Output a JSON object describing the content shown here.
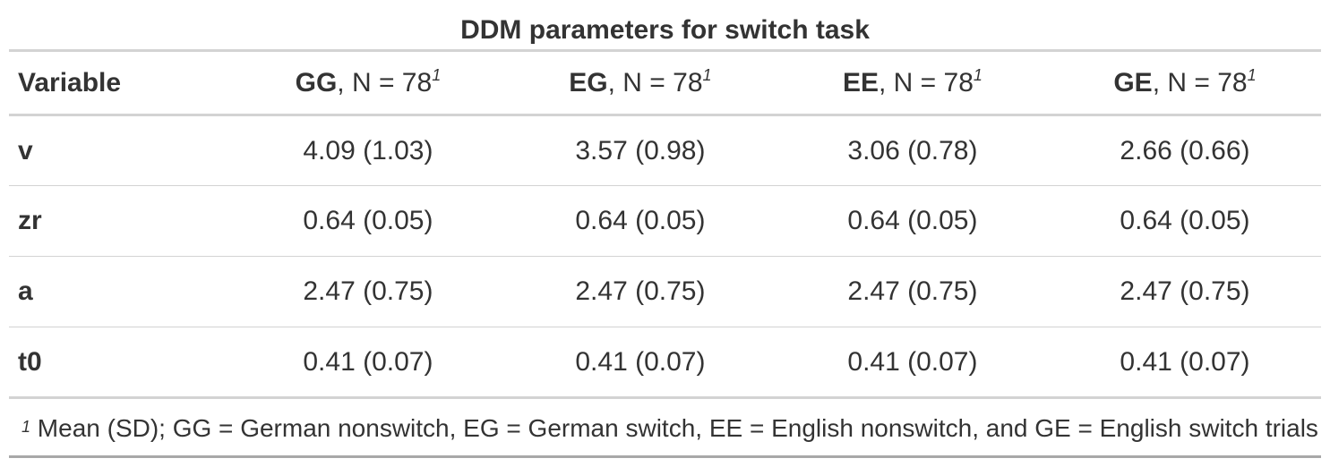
{
  "title": "DDM parameters for switch task",
  "header": {
    "variable": "Variable",
    "columns": [
      {
        "group": "GG",
        "n": ", N = 78",
        "note": "1"
      },
      {
        "group": "EG",
        "n": ", N = 78",
        "note": "1"
      },
      {
        "group": "EE",
        "n": ", N = 78",
        "note": "1"
      },
      {
        "group": "GE",
        "n": ", N = 78",
        "note": "1"
      }
    ]
  },
  "rows": [
    {
      "label": "v",
      "values": [
        "4.09 (1.03)",
        "3.57 (0.98)",
        "3.06 (0.78)",
        "2.66 (0.66)"
      ]
    },
    {
      "label": "zr",
      "values": [
        "0.64 (0.05)",
        "0.64 (0.05)",
        "0.64 (0.05)",
        "0.64 (0.05)"
      ]
    },
    {
      "label": "a",
      "values": [
        "2.47 (0.75)",
        "2.47 (0.75)",
        "2.47 (0.75)",
        "2.47 (0.75)"
      ]
    },
    {
      "label": "t0",
      "values": [
        "0.41 (0.07)",
        "0.41 (0.07)",
        "0.41 (0.07)",
        "0.41 (0.07)"
      ]
    }
  ],
  "footnote": {
    "mark": "1",
    "text": "Mean (SD); GG = German nonswitch, EG = German switch, EE = English nonswitch, and GE = English switch trials"
  }
}
